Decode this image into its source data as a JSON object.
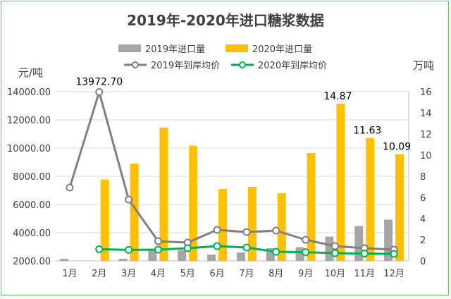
{
  "chart_data": {
    "type": "bar+line",
    "title": "2019年-2020年进口糖浆数据",
    "y_left_unit": "元/吨",
    "y_right_unit": "万吨",
    "y_left_range": [
      2000,
      14000
    ],
    "y_left_ticks": [
      "2000.00",
      "4000.00",
      "6000.00",
      "8000.00",
      "10000.00",
      "12000.00",
      "14000.00"
    ],
    "y_right_range": [
      0,
      16
    ],
    "y_right_ticks": [
      "0",
      "2",
      "4",
      "6",
      "8",
      "10",
      "12",
      "14",
      "16"
    ],
    "categories": [
      "1月",
      "2月",
      "3月",
      "4月",
      "5月",
      "6月",
      "7月",
      "8月",
      "9月",
      "10月",
      "11月",
      "12月"
    ],
    "bar_series": [
      {
        "name": "2019年进口量",
        "color": "#a6a6a6",
        "axis": "right",
        "values": [
          0.2,
          null,
          0.2,
          1.0,
          1.0,
          0.6,
          0.8,
          1.2,
          1.3,
          2.3,
          3.3,
          3.9
        ]
      },
      {
        "name": "2020年进口量",
        "color": "#ffc000",
        "axis": "right",
        "values": [
          null,
          7.7,
          9.2,
          12.6,
          10.9,
          6.8,
          7.0,
          6.4,
          10.2,
          14.87,
          11.63,
          10.09
        ]
      }
    ],
    "line_series": [
      {
        "name": "2019年到岸均价",
        "color": "#808080",
        "axis": "left",
        "values": [
          7200,
          13972.7,
          6350,
          3400,
          3300,
          4200,
          4050,
          4150,
          3500,
          3050,
          2900,
          2800
        ]
      },
      {
        "name": "2020年到岸均价",
        "color": "#00b050",
        "axis": "left",
        "values": [
          null,
          2830,
          2780,
          2800,
          2900,
          3050,
          2950,
          2650,
          2620,
          2550,
          2520,
          2500
        ]
      }
    ],
    "data_labels": [
      {
        "series": "2019年到岸均价",
        "category": "2月",
        "text": "13972.70"
      },
      {
        "series": "2020年进口量",
        "category": "10月",
        "text": "14.87"
      },
      {
        "series": "2020年进口量",
        "category": "11月",
        "text": "11.63"
      },
      {
        "series": "2020年进口量",
        "category": "12月",
        "text": "10.09"
      }
    ],
    "legend_position": "top",
    "grid": "horizontal"
  }
}
